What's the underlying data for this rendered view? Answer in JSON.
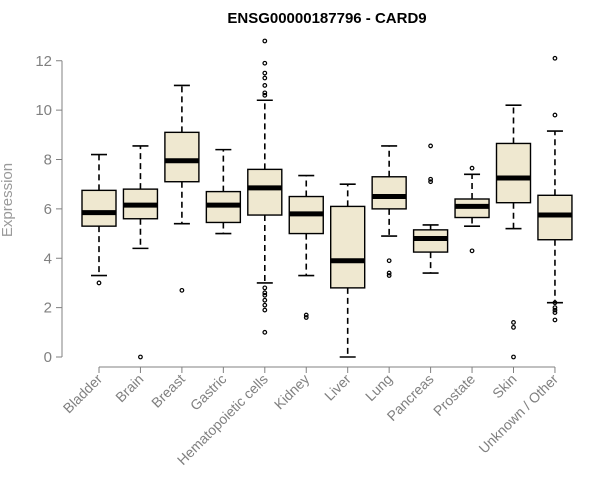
{
  "chart_data": {
    "type": "box",
    "title": "ENSG00000187796 - CARD9",
    "xlabel": "",
    "ylabel": "Expression",
    "ylim": [
      0,
      12.8
    ],
    "yticks": [
      0,
      2,
      4,
      6,
      8,
      10,
      12
    ],
    "categories": [
      "Bladder",
      "Brain",
      "Breast",
      "Gastric",
      "Hematopoietic cells",
      "Kidney",
      "Liver",
      "Lung",
      "Pancreas",
      "Prostate",
      "Skin",
      "Unknown / Other"
    ],
    "boxes": [
      {
        "category": "Bladder",
        "whisker_low": 3.3,
        "q1": 5.3,
        "median": 5.85,
        "q3": 6.75,
        "whisker_high": 8.2,
        "outliers": [
          3.0
        ]
      },
      {
        "category": "Brain",
        "whisker_low": 4.4,
        "q1": 5.6,
        "median": 6.15,
        "q3": 6.8,
        "whisker_high": 8.55,
        "outliers": [
          0.0
        ]
      },
      {
        "category": "Breast",
        "whisker_low": 5.4,
        "q1": 7.1,
        "median": 7.95,
        "q3": 9.1,
        "whisker_high": 11.0,
        "outliers": [
          2.7
        ]
      },
      {
        "category": "Gastric",
        "whisker_low": 5.0,
        "q1": 5.45,
        "median": 6.15,
        "q3": 6.7,
        "whisker_high": 8.4,
        "outliers": []
      },
      {
        "category": "Hematopoietic cells",
        "whisker_low": 3.0,
        "q1": 5.75,
        "median": 6.85,
        "q3": 7.6,
        "whisker_high": 10.4,
        "outliers": [
          1.0,
          1.9,
          2.1,
          2.3,
          2.5,
          2.6,
          2.8,
          10.6,
          10.7,
          11.0,
          11.3,
          11.5,
          11.9,
          12.8
        ]
      },
      {
        "category": "Kidney",
        "whisker_low": 3.3,
        "q1": 5.0,
        "median": 5.8,
        "q3": 6.5,
        "whisker_high": 7.35,
        "outliers": [
          1.6,
          1.7
        ]
      },
      {
        "category": "Liver",
        "whisker_low": 0.0,
        "q1": 2.8,
        "median": 3.9,
        "q3": 6.1,
        "whisker_high": 7.0,
        "outliers": []
      },
      {
        "category": "Lung",
        "whisker_low": 4.9,
        "q1": 6.0,
        "median": 6.5,
        "q3": 7.3,
        "whisker_high": 8.55,
        "outliers": [
          3.3,
          3.4,
          3.9
        ]
      },
      {
        "category": "Pancreas",
        "whisker_low": 3.4,
        "q1": 4.25,
        "median": 4.8,
        "q3": 5.15,
        "whisker_high": 5.35,
        "outliers": [
          7.1,
          7.2,
          8.55
        ]
      },
      {
        "category": "Prostate",
        "whisker_low": 5.3,
        "q1": 5.65,
        "median": 6.1,
        "q3": 6.4,
        "whisker_high": 7.4,
        "outliers": [
          4.3,
          7.65
        ]
      },
      {
        "category": "Skin",
        "whisker_low": 5.2,
        "q1": 6.25,
        "median": 7.25,
        "q3": 8.65,
        "whisker_high": 10.2,
        "outliers": [
          0.0,
          1.2,
          1.4
        ]
      },
      {
        "category": "Unknown / Other",
        "whisker_low": 2.2,
        "q1": 4.75,
        "median": 5.75,
        "q3": 6.55,
        "whisker_high": 9.15,
        "outliers": [
          1.5,
          1.8,
          1.9,
          2.0,
          2.2,
          9.8,
          12.1
        ]
      }
    ],
    "colors": {
      "box_fill": "#efe8d0",
      "box_stroke": "#000000",
      "axis": "#808080",
      "title": "#000000"
    }
  }
}
